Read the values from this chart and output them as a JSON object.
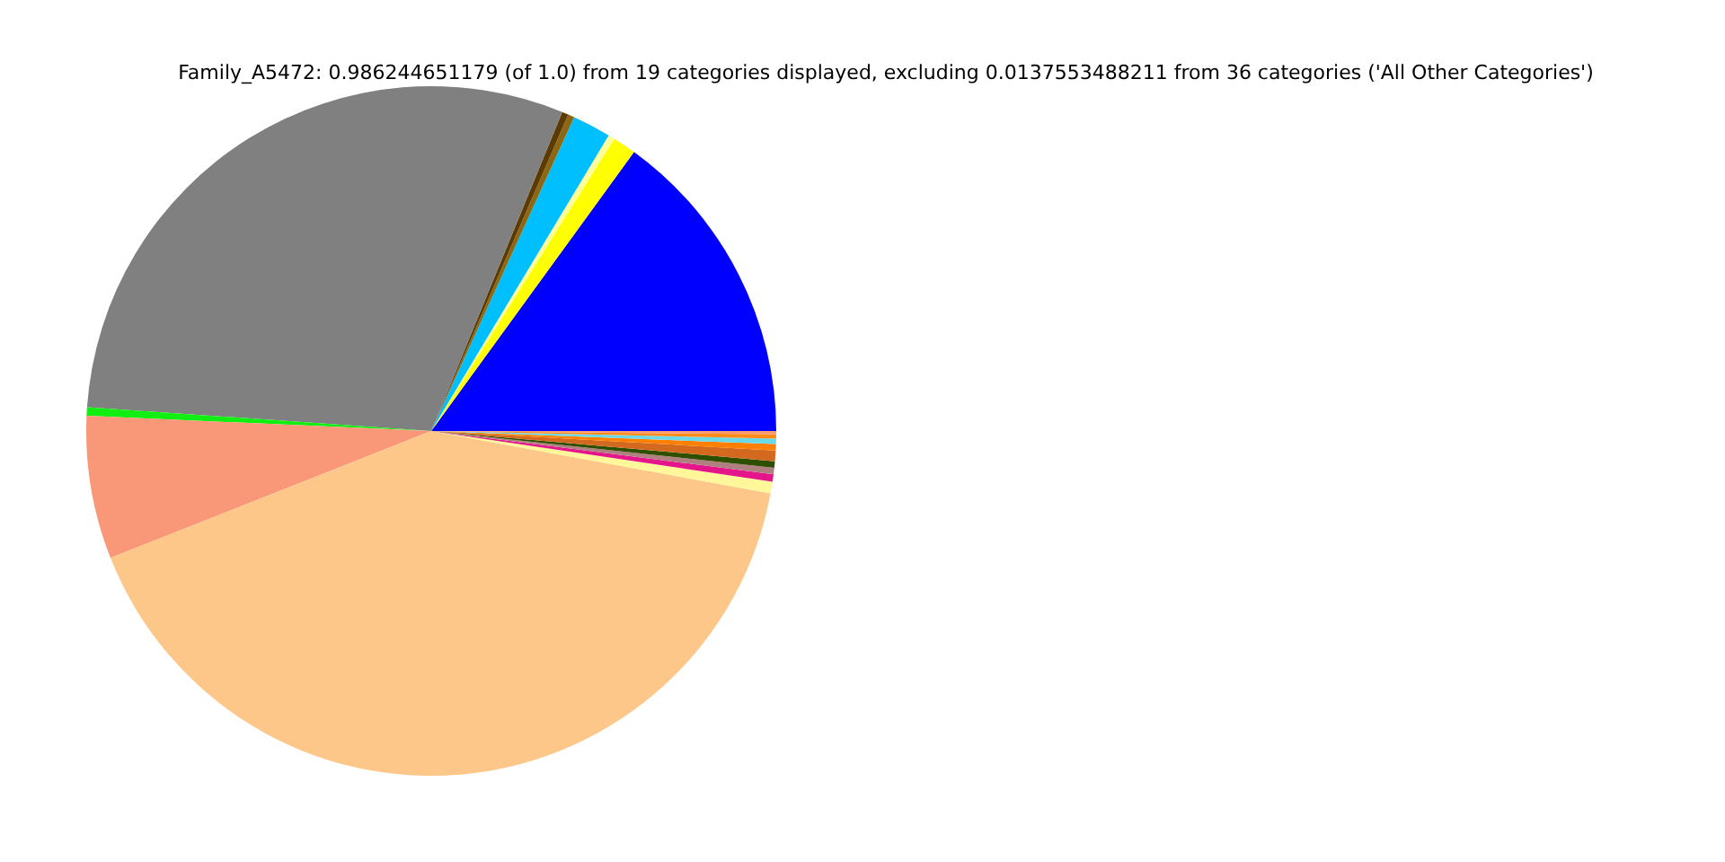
{
  "chart_data": {
    "type": "pie",
    "title": "Family_A5472: 0.986244651179 (of 1.0) from 19 categories displayed, excluding 0.0137553488211 from 36 categories ('All Other Categories')",
    "categories": [
      null,
      null,
      null,
      null,
      null,
      null,
      null,
      null,
      null,
      null,
      null,
      null,
      null,
      null,
      null,
      null,
      null,
      null,
      null
    ],
    "values": [
      15.0,
      1.1,
      0.3,
      1.8,
      0.3,
      0.3,
      30.1,
      0.4,
      6.7,
      41.1,
      0.55,
      0.35,
      0.3,
      0.3,
      0.5,
      0.3,
      0.25,
      0.2,
      0.15
    ],
    "colors": [
      "#0000ff",
      "#ffff00",
      "#ffff99",
      "#00bfff",
      "#8b6914",
      "#5c3a00",
      "#808080",
      "#11ee11",
      "#f99879",
      "#fcc788",
      "#fff799",
      "#e5158a",
      "#b08080",
      "#2f4f00",
      "#d2691e",
      "#ff7f00",
      "#6ad9e8",
      "#ff8c1a",
      "#fa9a70"
    ]
  }
}
